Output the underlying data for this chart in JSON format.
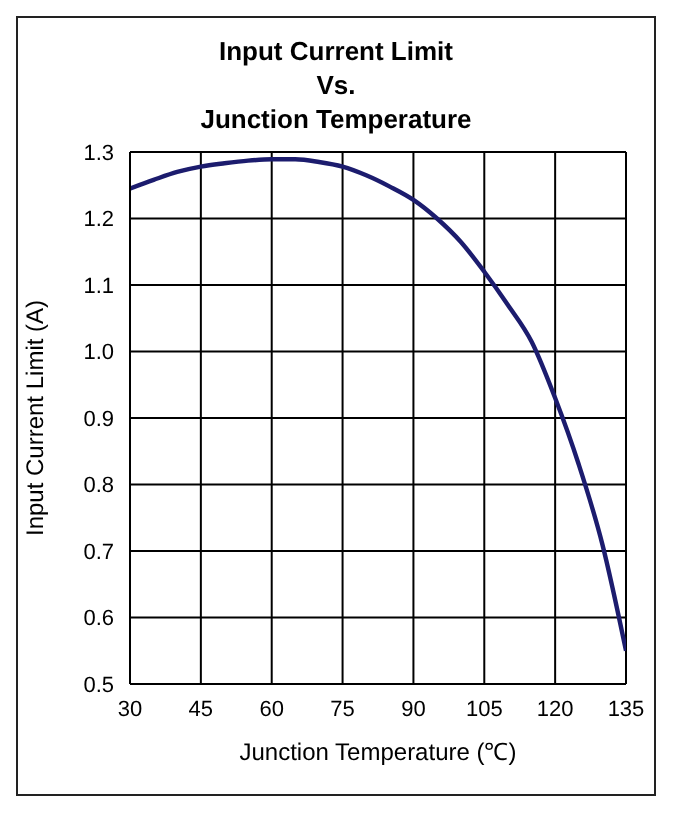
{
  "chart_data": {
    "type": "line",
    "title": "Input Current Limit\nVs.\nJunction Temperature",
    "xlabel": "Junction Temperature (℃)",
    "ylabel": "Input Current Limit (A)",
    "x": [
      30,
      35,
      40,
      45,
      50,
      55,
      60,
      65,
      70,
      75,
      80,
      85,
      90,
      95,
      100,
      105,
      110,
      115,
      120,
      125,
      130,
      135
    ],
    "series": [
      {
        "color": "#1c1c6e",
        "values": [
          1.245,
          1.258,
          1.27,
          1.278,
          1.283,
          1.287,
          1.289,
          1.289,
          1.285,
          1.278,
          1.265,
          1.248,
          1.228,
          1.2,
          1.165,
          1.12,
          1.07,
          1.015,
          0.93,
          0.83,
          0.71,
          0.55
        ]
      }
    ],
    "xlim": [
      30,
      135
    ],
    "xticks": [
      30,
      45,
      60,
      75,
      90,
      105,
      120,
      135
    ],
    "ylim": [
      0.5,
      1.3
    ],
    "yticks": [
      {
        "value": 0.5,
        "label": "0.5"
      },
      {
        "value": 0.6,
        "label": "0.6"
      },
      {
        "value": 0.7,
        "label": "0.7"
      },
      {
        "value": 0.8,
        "label": "0.8"
      },
      {
        "value": 0.9,
        "label": "0.9"
      },
      {
        "value": 1.0,
        "label": "1.0"
      },
      {
        "value": 1.1,
        "label": "1.1"
      },
      {
        "value": 1.2,
        "label": "1.2"
      },
      {
        "value": 1.3,
        "label": "1.3"
      }
    ],
    "grid": true,
    "marker": "none",
    "line_style": "solid",
    "legend": false
  }
}
